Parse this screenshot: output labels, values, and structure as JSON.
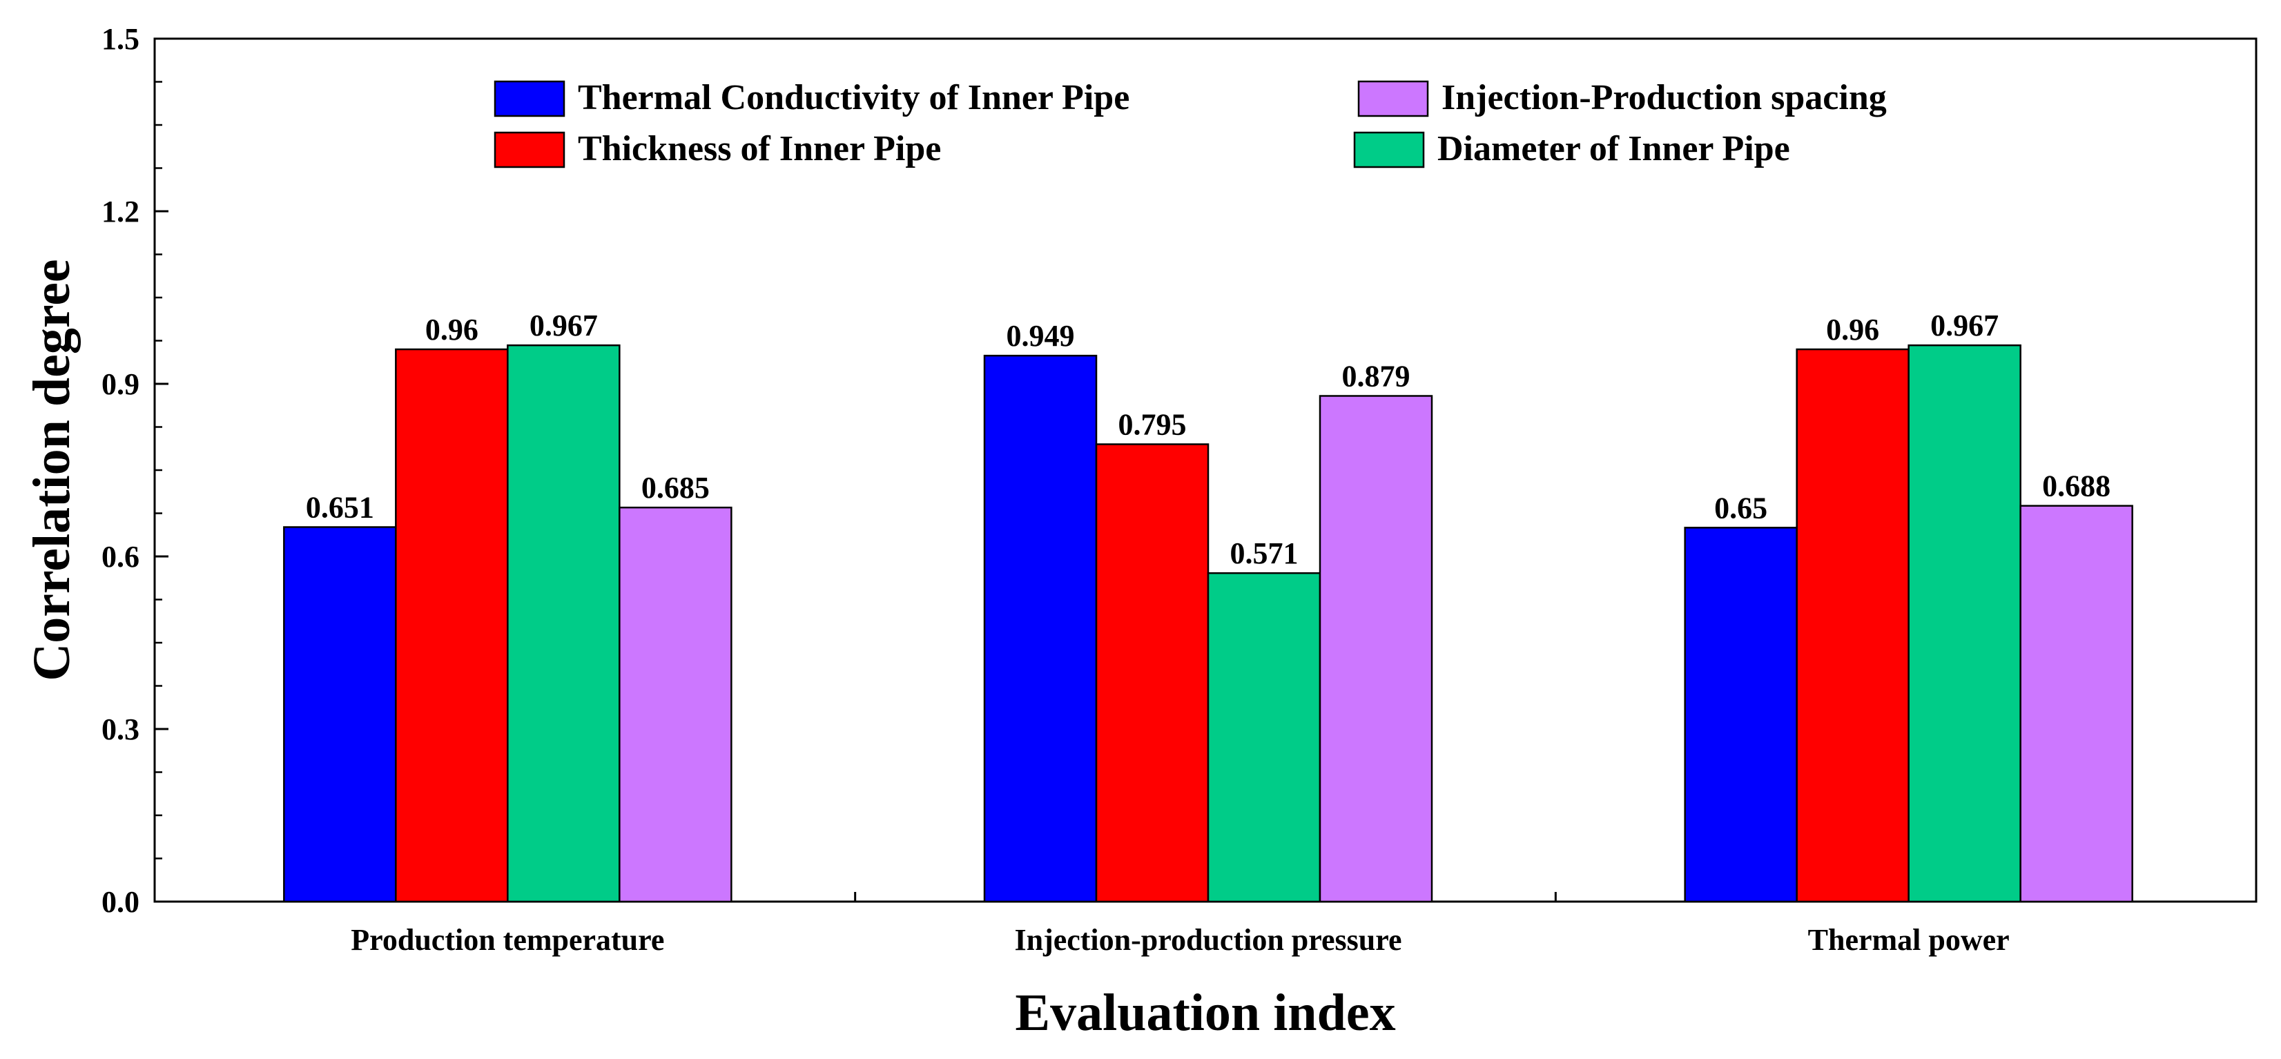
{
  "chart_data": {
    "type": "bar",
    "title": "",
    "xlabel": "Evaluation index",
    "ylabel": "Correlation degree",
    "ylim": [
      0.0,
      1.5
    ],
    "yticks": [
      0.0,
      0.3,
      0.6,
      0.9,
      1.2,
      1.5
    ],
    "ytick_labels": [
      "0.0",
      "0.3",
      "0.6",
      "0.9",
      "1.2",
      "1.5"
    ],
    "categories": [
      "Production temperature",
      "Injection-production pressure",
      "Thermal power"
    ],
    "series": [
      {
        "name": "Thermal Conductivity of Inner Pipe",
        "color": "#0000ff",
        "values": [
          0.651,
          0.949,
          0.65
        ],
        "labels": [
          "0.651",
          "0.949",
          "0.65"
        ]
      },
      {
        "name": "Thickness of Inner Pipe",
        "color": "#ff0000",
        "values": [
          0.96,
          0.795,
          0.96
        ],
        "labels": [
          "0.96",
          "0.795",
          "0.96"
        ]
      },
      {
        "name": "Diameter of Inner Pipe",
        "color": "#00cc88",
        "values": [
          0.967,
          0.571,
          0.967
        ],
        "labels": [
          "0.967",
          "0.571",
          "0.967"
        ]
      },
      {
        "name": "Injection-Production spacing",
        "color": "#cc77ff",
        "values": [
          0.685,
          0.879,
          0.688
        ],
        "labels": [
          "0.685",
          "0.879",
          "0.688"
        ]
      }
    ],
    "legend": {
      "position": "top-center",
      "columns": 2,
      "order": [
        "Thermal Conductivity of Inner Pipe",
        "Injection-Production spacing",
        "Thickness of Inner Pipe",
        "Diameter of Inner Pipe"
      ]
    },
    "grid": false
  }
}
